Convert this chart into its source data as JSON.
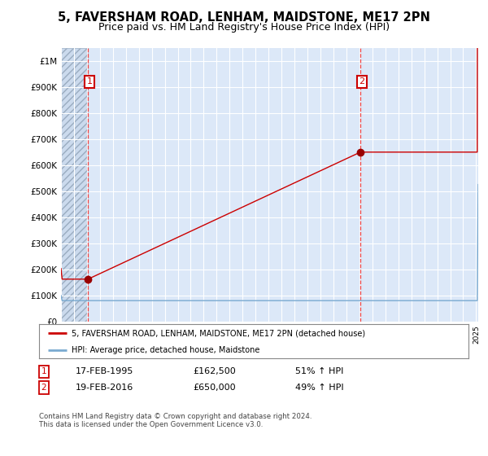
{
  "title": "5, FAVERSHAM ROAD, LENHAM, MAIDSTONE, ME17 2PN",
  "subtitle": "Price paid vs. HM Land Registry's House Price Index (HPI)",
  "legend_label_red": "5, FAVERSHAM ROAD, LENHAM, MAIDSTONE, ME17 2PN (detached house)",
  "legend_label_blue": "HPI: Average price, detached house, Maidstone",
  "transaction1_date": "17-FEB-1995",
  "transaction1_price": "£162,500",
  "transaction1_hpi": "51% ↑ HPI",
  "transaction2_date": "19-FEB-2016",
  "transaction2_price": "£650,000",
  "transaction2_hpi": "49% ↑ HPI",
  "footer": "Contains HM Land Registry data © Crown copyright and database right 2024.\nThis data is licensed under the Open Government Licence v3.0.",
  "bg_color": "#dce8f8",
  "grid_color": "#ffffff",
  "red_line_color": "#cc0000",
  "blue_line_color": "#7aaad0",
  "dot_color": "#990000",
  "vline_color": "#ee4444",
  "box_color": "#cc0000",
  "ylim_max": 1050000,
  "ylim_min": 0
}
